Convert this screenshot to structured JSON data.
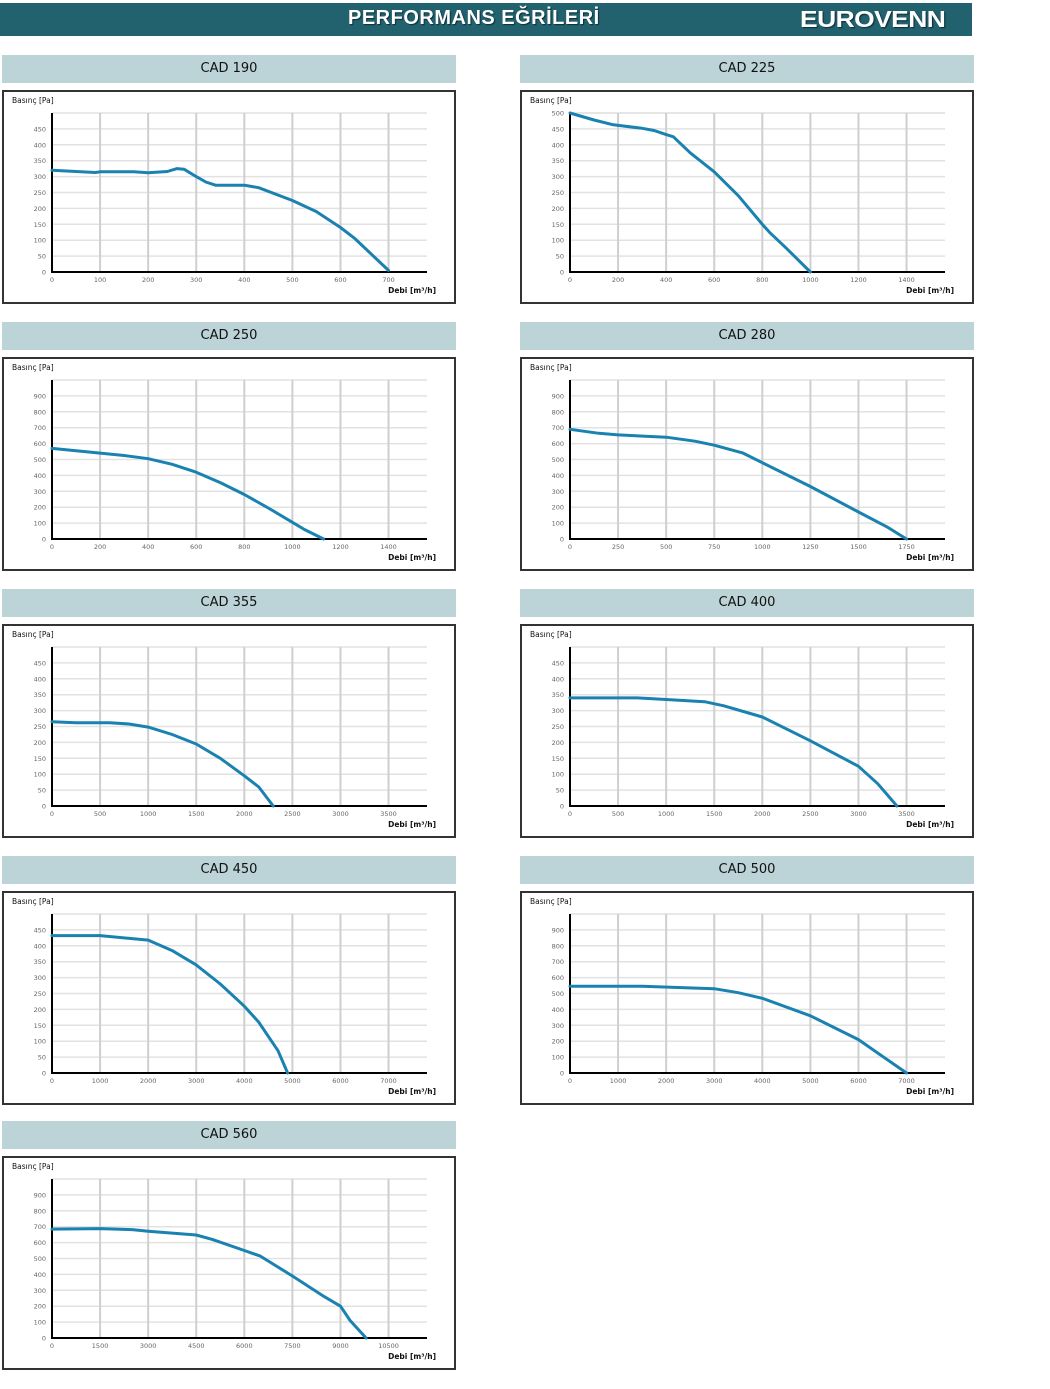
{
  "header": {
    "title": "PERFORMANS EĞRİLERİ",
    "logo": "EUROVENN",
    "color": "#22626f"
  },
  "curve_color": "#1a82b0",
  "chart_data": [
    {
      "type": "line",
      "title": "CAD 190",
      "ylabel": "Basınç [Pa]",
      "xlabel": "Debi [m³/h]",
      "xticks": [
        0,
        100,
        200,
        300,
        400,
        500,
        600,
        700
      ],
      "yticks": [
        0,
        50,
        100,
        150,
        200,
        250,
        300,
        350,
        400,
        450
      ],
      "xlim": [
        0,
        780
      ],
      "ylim": [
        0,
        500
      ],
      "grid": true,
      "x": [
        0,
        50,
        90,
        100,
        170,
        200,
        240,
        260,
        275,
        300,
        320,
        340,
        400,
        430,
        500,
        550,
        600,
        630,
        700
      ],
      "y": [
        320,
        316,
        313,
        315,
        315,
        312,
        316,
        325,
        323,
        300,
        283,
        273,
        273,
        265,
        225,
        190,
        140,
        105,
        5
      ]
    },
    {
      "type": "line",
      "title": "CAD 225",
      "ylabel": "Basınç [Pa]",
      "xlabel": "Debi [m³/h]",
      "xticks": [
        0,
        200,
        400,
        600,
        800,
        1000,
        1200,
        1400
      ],
      "yticks": [
        0,
        50,
        100,
        150,
        200,
        250,
        300,
        350,
        400,
        450,
        500
      ],
      "xlim": [
        0,
        1560
      ],
      "ylim": [
        0,
        500
      ],
      "grid": true,
      "x": [
        0,
        100,
        180,
        300,
        350,
        400,
        430,
        500,
        600,
        700,
        800,
        830,
        900,
        1000
      ],
      "y": [
        500,
        478,
        463,
        452,
        445,
        432,
        425,
        375,
        315,
        240,
        150,
        125,
        75,
        0
      ]
    },
    {
      "type": "line",
      "title": "CAD 250",
      "ylabel": "Basınç [Pa]",
      "xlabel": "Debi [m³/h]",
      "xticks": [
        0,
        200,
        400,
        600,
        800,
        1000,
        1200,
        1400
      ],
      "yticks": [
        0,
        100,
        200,
        300,
        400,
        500,
        600,
        700,
        800,
        900
      ],
      "xlim": [
        0,
        1560
      ],
      "ylim": [
        0,
        1000
      ],
      "grid": true,
      "x": [
        0,
        200,
        300,
        400,
        500,
        600,
        700,
        800,
        900,
        1000,
        1050,
        1130
      ],
      "y": [
        570,
        540,
        525,
        505,
        470,
        420,
        355,
        280,
        195,
        105,
        60,
        0
      ]
    },
    {
      "type": "line",
      "title": "CAD 280",
      "ylabel": "Basınç [Pa]",
      "xlabel": "Debi [m³/h]",
      "xticks": [
        0,
        250,
        500,
        750,
        1000,
        1250,
        1500,
        1750
      ],
      "yticks": [
        0,
        100,
        200,
        300,
        400,
        500,
        600,
        700,
        800,
        900
      ],
      "xlim": [
        0,
        1950
      ],
      "ylim": [
        0,
        1000
      ],
      "grid": true,
      "x": [
        0,
        150,
        250,
        500,
        650,
        750,
        900,
        1000,
        1250,
        1500,
        1650,
        1750
      ],
      "y": [
        690,
        665,
        655,
        640,
        615,
        590,
        540,
        480,
        330,
        170,
        75,
        0
      ]
    },
    {
      "type": "line",
      "title": "CAD 355",
      "ylabel": "Basınç [Pa]",
      "xlabel": "Debi [m³/h]",
      "xticks": [
        0,
        500,
        1000,
        1500,
        2000,
        2500,
        3000,
        3500
      ],
      "yticks": [
        0,
        50,
        100,
        150,
        200,
        250,
        300,
        350,
        400,
        450
      ],
      "xlim": [
        0,
        3900
      ],
      "ylim": [
        0,
        500
      ],
      "grid": true,
      "x": [
        0,
        250,
        600,
        800,
        1000,
        1250,
        1500,
        1750,
        2000,
        2150,
        2300
      ],
      "y": [
        265,
        262,
        262,
        258,
        248,
        225,
        195,
        150,
        95,
        60,
        0
      ]
    },
    {
      "type": "line",
      "title": "CAD 400",
      "ylabel": "Basınç [Pa]",
      "xlabel": "Debi [m³/h]",
      "xticks": [
        0,
        500,
        1000,
        1500,
        2000,
        2500,
        3000,
        3500
      ],
      "yticks": [
        0,
        50,
        100,
        150,
        200,
        250,
        300,
        350,
        400,
        450
      ],
      "xlim": [
        0,
        3900
      ],
      "ylim": [
        0,
        500
      ],
      "grid": true,
      "x": [
        0,
        700,
        1000,
        1400,
        1600,
        2000,
        2500,
        3000,
        3200,
        3400
      ],
      "y": [
        340,
        340,
        335,
        328,
        315,
        280,
        205,
        125,
        70,
        0
      ]
    },
    {
      "type": "line",
      "title": "CAD 450",
      "ylabel": "Basınç [Pa]",
      "xlabel": "Debi [m³/h]",
      "xticks": [
        0,
        1000,
        2000,
        3000,
        4000,
        5000,
        6000,
        7000
      ],
      "yticks": [
        0,
        50,
        100,
        150,
        200,
        250,
        300,
        350,
        400,
        450
      ],
      "xlim": [
        0,
        7800
      ],
      "ylim": [
        0,
        500
      ],
      "grid": true,
      "x": [
        0,
        1000,
        2000,
        2500,
        3000,
        3500,
        4000,
        4300,
        4700,
        4900
      ],
      "y": [
        432,
        432,
        418,
        385,
        340,
        280,
        210,
        160,
        70,
        0
      ]
    },
    {
      "type": "line",
      "title": "CAD 500",
      "ylabel": "Basınç [Pa]",
      "xlabel": "Debi [m³/h]",
      "xticks": [
        0,
        1000,
        2000,
        3000,
        4000,
        5000,
        6000,
        7000
      ],
      "yticks": [
        0,
        100,
        200,
        300,
        400,
        500,
        600,
        700,
        800,
        900
      ],
      "xlim": [
        0,
        7800
      ],
      "ylim": [
        0,
        1000
      ],
      "grid": true,
      "x": [
        0,
        1500,
        3000,
        3500,
        4000,
        5000,
        6000,
        7000
      ],
      "y": [
        545,
        545,
        530,
        505,
        470,
        360,
        210,
        0
      ]
    },
    {
      "type": "line",
      "title": "CAD 560",
      "ylabel": "Basınç [Pa]",
      "xlabel": "Debi [m³/h]",
      "xticks": [
        0,
        1500,
        3000,
        4500,
        6000,
        7500,
        9000,
        10500
      ],
      "yticks": [
        0,
        100,
        200,
        300,
        400,
        500,
        600,
        700,
        800,
        900
      ],
      "xlim": [
        0,
        11700
      ],
      "ylim": [
        0,
        1000
      ],
      "grid": true,
      "x": [
        0,
        1500,
        2500,
        3000,
        4500,
        5000,
        6000,
        6500,
        7500,
        8500,
        9000,
        9300,
        9800
      ],
      "y": [
        685,
        688,
        682,
        672,
        648,
        620,
        550,
        515,
        390,
        260,
        200,
        110,
        0
      ]
    }
  ]
}
